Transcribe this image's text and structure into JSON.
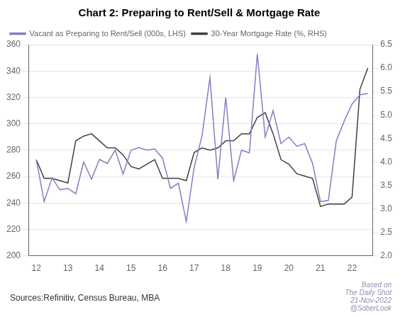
{
  "chart_data": {
    "type": "line",
    "title": "Chart 2: Preparing to Rent/Sell & Mortgage Rate",
    "x": [
      12.0,
      12.25,
      12.5,
      12.75,
      13.0,
      13.25,
      13.5,
      13.75,
      14.0,
      14.25,
      14.5,
      14.75,
      15.0,
      15.25,
      15.5,
      15.75,
      16.0,
      16.25,
      16.5,
      16.75,
      17.0,
      17.25,
      17.5,
      17.75,
      18.0,
      18.25,
      18.5,
      18.75,
      19.0,
      19.25,
      19.5,
      19.75,
      20.0,
      20.25,
      20.5,
      20.75,
      21.0,
      21.25,
      21.5,
      21.75,
      22.0,
      22.25,
      22.5
    ],
    "xlim": [
      11.75,
      22.65
    ],
    "xticks": [
      12,
      13,
      14,
      15,
      16,
      17,
      18,
      19,
      20,
      21,
      22
    ],
    "ylim": [
      200,
      360
    ],
    "yticks": [
      200,
      220,
      240,
      260,
      280,
      300,
      320,
      340,
      360
    ],
    "y2lim": [
      2.0,
      6.5
    ],
    "y2ticks": [
      {
        "value": 2.0,
        "label": "2.0"
      },
      {
        "value": 2.5,
        "label": "2.5"
      },
      {
        "value": 3.0,
        "label": "3.0"
      },
      {
        "value": 3.5,
        "label": "3.5"
      },
      {
        "value": 4.0,
        "label": "4.0"
      },
      {
        "value": 4.5,
        "label": "4.5"
      },
      {
        "value": 5.0,
        "label": "5.0"
      },
      {
        "value": 5.5,
        "label": "5.5"
      },
      {
        "value": 6.0,
        "label": "6.0"
      },
      {
        "value": 6.5,
        "label": "6.5"
      }
    ],
    "series": [
      {
        "name": "Vacant as Preparing to Rent/Sell (000s, LHS)",
        "color": "#8080c0",
        "values": [
          273,
          241,
          259,
          250,
          251,
          247,
          271,
          258,
          273,
          270,
          280,
          262,
          280,
          282,
          280,
          281,
          274,
          251,
          255,
          226,
          267,
          291,
          335,
          258,
          320,
          257,
          280,
          278,
          353,
          290,
          310,
          285,
          290,
          283,
          285,
          270,
          241,
          242,
          287,
          302,
          315,
          322,
          323
        ]
      },
      {
        "name": "30-Year Mortgage Rate (%, RHS)",
        "color": "#404040",
        "axis": "y2",
        "values": [
          4.05,
          3.65,
          3.65,
          3.6,
          3.55,
          4.45,
          4.55,
          4.6,
          4.45,
          4.3,
          4.3,
          4.15,
          3.9,
          3.85,
          3.95,
          4.05,
          3.65,
          3.65,
          3.65,
          3.6,
          4.2,
          4.3,
          4.25,
          4.3,
          4.45,
          4.45,
          4.6,
          4.6,
          4.95,
          5.05,
          4.6,
          4.05,
          3.95,
          3.75,
          3.7,
          3.65,
          3.05,
          3.1,
          3.1,
          3.1,
          3.25,
          5.55,
          6.0
        ]
      }
    ],
    "annotations": [
      "Sources:Refinitiv, Census Bureau, MBA",
      "Based on",
      "The Daily Shot",
      "21-Nov-2022",
      "@SoberLook"
    ],
    "grid": "y",
    "legend": "upper left"
  }
}
